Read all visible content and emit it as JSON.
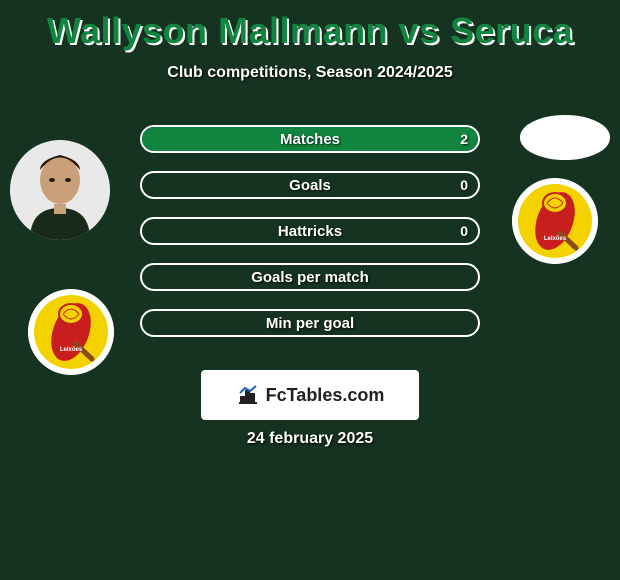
{
  "title": "Wallyson Mallmann vs Seruca",
  "subtitle": "Club competitions, Season 2024/2025",
  "date": "24 february 2025",
  "watermark": "FcTables.com",
  "colors": {
    "background": "#163220",
    "fill": "#11843f",
    "border": "#ffffff",
    "text": "#ffffff",
    "title_shadow": "#ffffff",
    "club_yellow": "#f3d200",
    "club_red": "#c81e1e"
  },
  "bars": [
    {
      "label": "Matches",
      "left": "",
      "right": "2",
      "left_pct": 0,
      "right_pct": 100
    },
    {
      "label": "Goals",
      "left": "",
      "right": "0",
      "left_pct": 0,
      "right_pct": 0
    },
    {
      "label": "Hattricks",
      "left": "",
      "right": "0",
      "left_pct": 0,
      "right_pct": 0
    },
    {
      "label": "Goals per match",
      "left": "",
      "right": "",
      "left_pct": 0,
      "right_pct": 0
    },
    {
      "label": "Min per goal",
      "left": "",
      "right": "",
      "left_pct": 0,
      "right_pct": 0
    }
  ]
}
